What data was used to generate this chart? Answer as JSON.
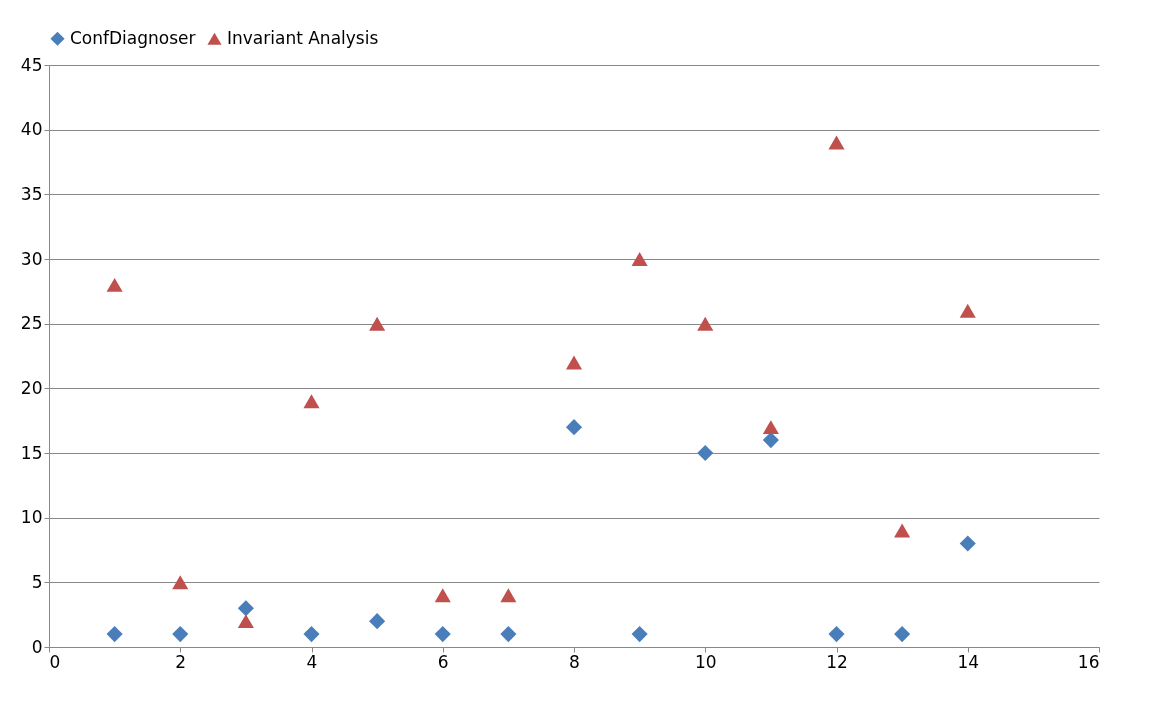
{
  "chart_data": {
    "type": "scatter",
    "x": [
      1,
      2,
      3,
      4,
      5,
      6,
      7,
      8,
      9,
      10,
      11,
      12,
      13,
      14
    ],
    "series": [
      {
        "name": "ConfDiagnoser",
        "color": "#4a7ebb",
        "marker": "diamond",
        "values": [
          1,
          1,
          3,
          1,
          2,
          1,
          1,
          17,
          1,
          15,
          16,
          1,
          1,
          8
        ]
      },
      {
        "name": "Invariant Analysis",
        "color": "#c0504d",
        "marker": "triangle",
        "values": [
          28,
          5,
          2,
          19,
          25,
          4,
          4,
          22,
          30,
          25,
          17,
          39,
          9,
          26
        ]
      }
    ],
    "xlim": [
      0,
      16
    ],
    "xticks": [
      0,
      2,
      4,
      6,
      8,
      10,
      12,
      14,
      16
    ],
    "ylim": [
      0,
      45
    ],
    "yticks": [
      0,
      5,
      10,
      15,
      20,
      25,
      30,
      35,
      40,
      45
    ],
    "grid": "y",
    "legend": "top"
  }
}
